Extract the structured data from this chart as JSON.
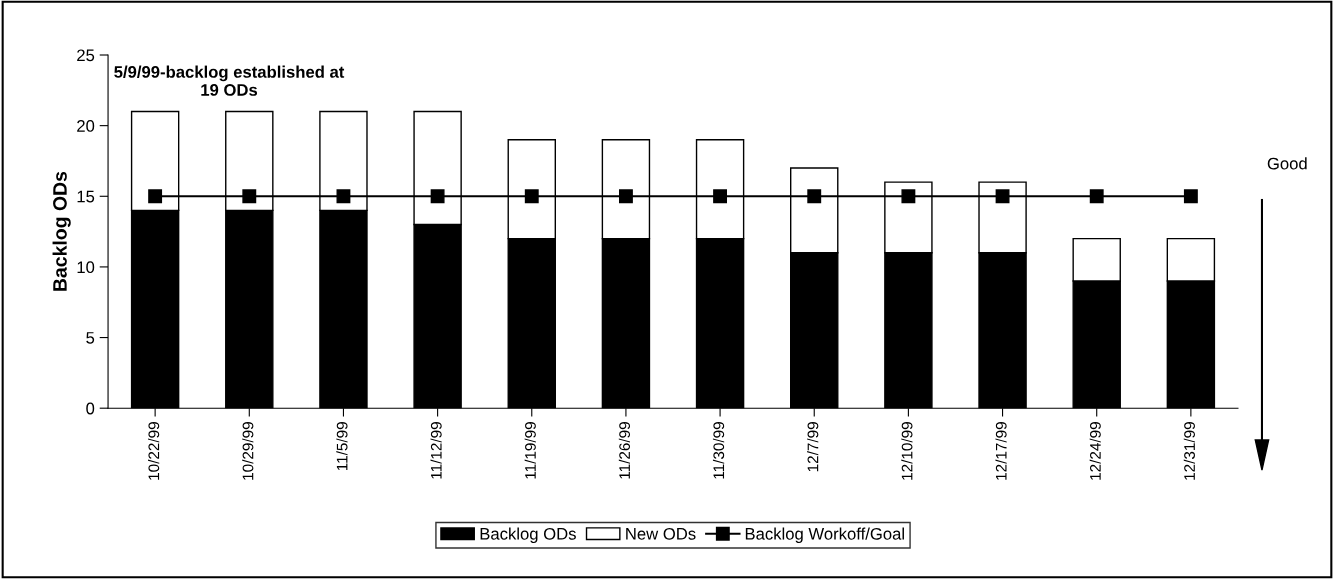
{
  "chart_data": {
    "type": "bar",
    "stacked": true,
    "ylabel": "Backlog ODs",
    "categories": [
      "10/22/99",
      "10/29/99",
      "11/5/99",
      "11/12/99",
      "11/19/99",
      "11/26/99",
      "11/30/99",
      "12/7/99",
      "12/10/99",
      "12/17/99",
      "12/24/99",
      "12/31/99"
    ],
    "series": [
      {
        "name": "Backlog ODs",
        "color": "#000000",
        "values": [
          14,
          14,
          14,
          13,
          12,
          12,
          12,
          11,
          11,
          11,
          9,
          9
        ]
      },
      {
        "name": "New ODs",
        "color": "#ffffff",
        "values": [
          7,
          7,
          7,
          8,
          7,
          7,
          7,
          6,
          5,
          5,
          3,
          3
        ]
      },
      {
        "name": "Backlog Workoff/Goal",
        "type": "line",
        "color": "#000000",
        "marker": "square",
        "values": [
          15,
          15,
          15,
          15,
          15,
          15,
          15,
          15,
          15,
          15,
          15,
          15
        ]
      }
    ],
    "ylim": [
      0,
      25
    ],
    "yticks": [
      0,
      5,
      10,
      15,
      20,
      25
    ],
    "grid": false,
    "legend": "bottom",
    "annotations": [
      "5/9/99-backlog established at\n19 ODs",
      "Good"
    ]
  }
}
